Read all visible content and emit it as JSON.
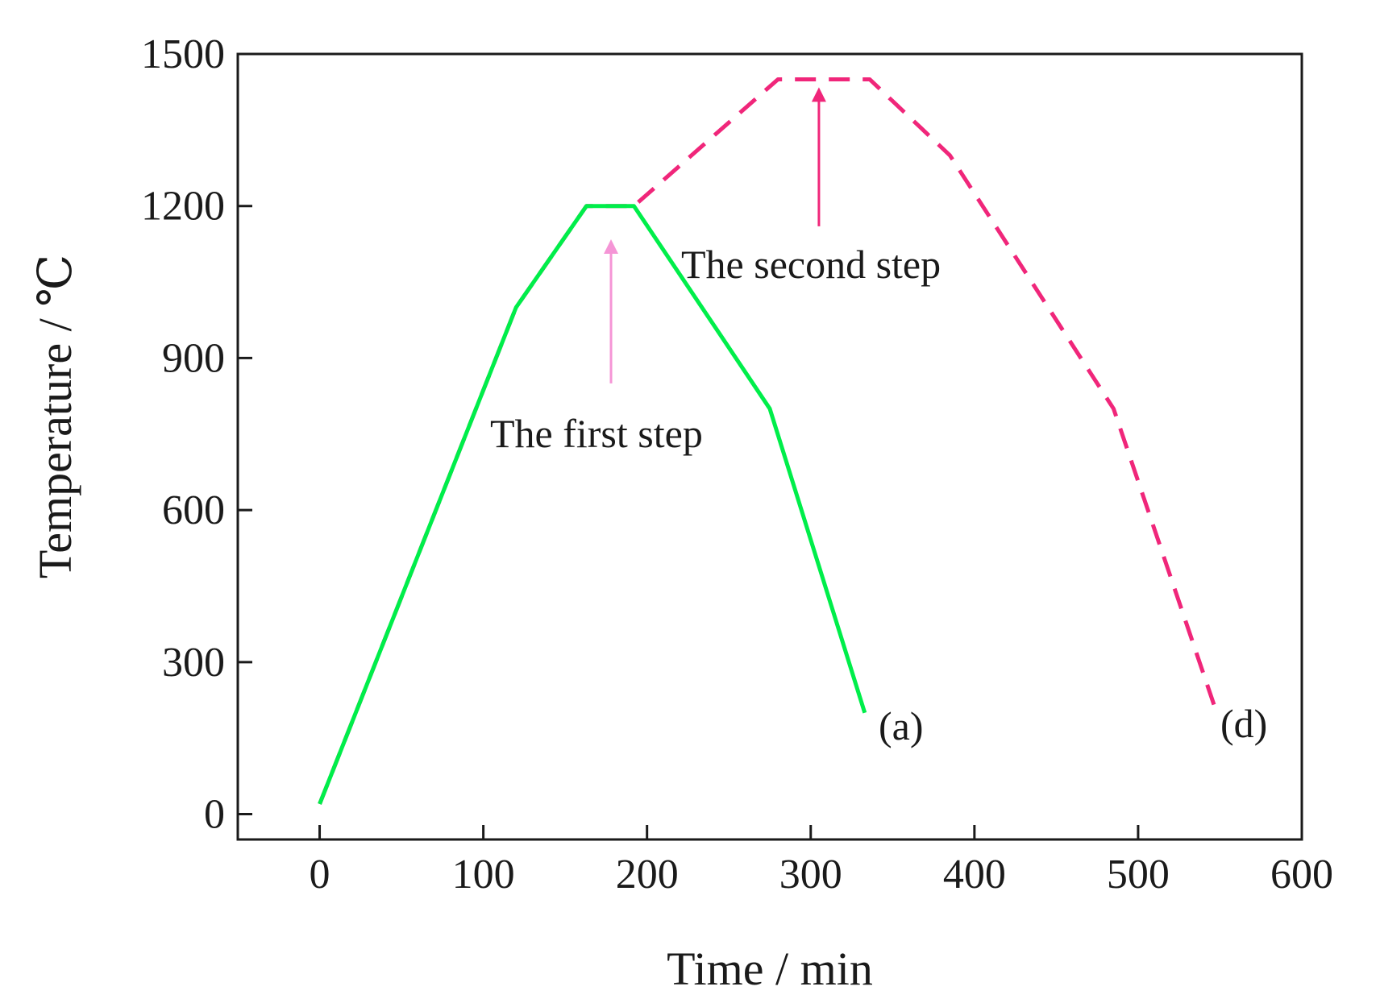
{
  "chart_data": {
    "type": "line",
    "title": "",
    "xlabel": "Time / min",
    "ylabel": "Temperature / ℃",
    "xlim": [
      -50,
      600
    ],
    "ylim": [
      -50,
      1500
    ],
    "xticks": [
      0,
      100,
      200,
      300,
      400,
      500,
      600
    ],
    "yticks": [
      0,
      300,
      600,
      900,
      1200,
      1500
    ],
    "grid": false,
    "series": [
      {
        "name": "(a)",
        "color": "#00ee4a",
        "style": "solid",
        "x": [
          0,
          120,
          163,
          192,
          275,
          333
        ],
        "y": [
          20,
          1000,
          1200,
          1200,
          800,
          200
        ]
      },
      {
        "name": "(d)",
        "color": "#f0267a",
        "style": "dashed",
        "x": [
          0,
          120,
          163,
          192,
          280,
          336,
          385,
          485,
          548
        ],
        "y": [
          20,
          1000,
          1200,
          1200,
          1450,
          1450,
          1300,
          800,
          200
        ]
      }
    ],
    "annotations": [
      {
        "text": "The first step",
        "arrow_to": [
          178,
          1120
        ],
        "arrow_from": [
          178,
          850
        ],
        "arrow_color": "#f595d6"
      },
      {
        "text": "The second step",
        "arrow_to": [
          305,
          1420
        ],
        "arrow_from": [
          305,
          1160
        ],
        "arrow_color": "#f0267a"
      }
    ]
  }
}
